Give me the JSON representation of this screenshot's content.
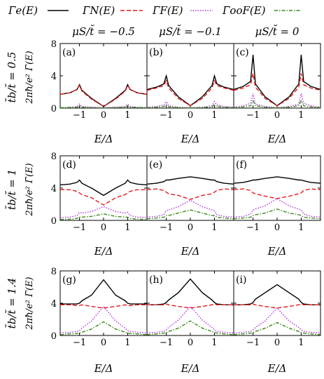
{
  "legend": {
    "entries": [
      {
        "label": "Γ̄e(E)",
        "color": "#000000",
        "dash": ""
      },
      {
        "label": "Γ̄N(E)",
        "color": "#e41a1c",
        "dash": "6,3"
      },
      {
        "label": "Γ̄F(E)",
        "color": "#b030e0",
        "dash": "1.5,2"
      },
      {
        "label": "Γ̄ooF(E)",
        "color": "#3a8a1a",
        "dash": "5,2,1.5,2"
      }
    ]
  },
  "column_headers": [
    "μS/t̆ = −0.5",
    "μS/t̆ = −0.1",
    "μS/t̆ = 0"
  ],
  "row_labels": [
    "t̆b/t̆ = 0.5",
    "t̆b/t̆ = 1",
    "t̆b/t̆ = 1.4"
  ],
  "y_axis_label": "2πħ/e² Γ̄(E)",
  "x_axis_label": "E/Δ",
  "chart_data": {
    "type": "line",
    "xlabel": "E/Δ",
    "ylabel": "2πħ/e² Γ̄(E)",
    "xlim": [
      -1.8,
      1.8
    ],
    "ylim": [
      0,
      8
    ],
    "xticks": [
      "−1",
      "0",
      "1"
    ],
    "yticks": [
      "0",
      "4",
      "8"
    ],
    "x": [
      -1.8,
      -1.4,
      -1.1,
      -1.0,
      -0.9,
      -0.5,
      0,
      0.5,
      0.9,
      1.0,
      1.1,
      1.4,
      1.8
    ],
    "panels": [
      {
        "label": "(a)",
        "series": [
          {
            "name": "Γ̄e(E)",
            "values": [
              1.7,
              1.9,
              2.3,
              2.9,
              2.2,
              1.2,
              0.2,
              1.2,
              2.2,
              2.9,
              2.3,
              1.9,
              1.7
            ]
          },
          {
            "name": "Γ̄N(E)",
            "values": [
              1.7,
              1.9,
              2.3,
              2.8,
              2.1,
              1.1,
              0.2,
              1.1,
              2.1,
              2.8,
              2.3,
              1.9,
              1.7
            ]
          },
          {
            "name": "Γ̄F(E)",
            "values": [
              0.05,
              0.1,
              0.2,
              0.5,
              0.2,
              0.1,
              0.05,
              0.1,
              0.2,
              0.5,
              0.2,
              0.1,
              0.05
            ]
          },
          {
            "name": "Γ̄ooF(E)",
            "values": [
              0.05,
              0.08,
              0.1,
              0.25,
              0.1,
              0.06,
              0.03,
              0.06,
              0.1,
              0.25,
              0.1,
              0.08,
              0.05
            ]
          }
        ]
      },
      {
        "label": "(b)",
        "series": [
          {
            "name": "Γ̄e(E)",
            "values": [
              2.3,
              2.6,
              3.0,
              4.0,
              2.8,
              1.4,
              0.3,
              1.4,
              2.8,
              4.0,
              3.0,
              2.6,
              2.3
            ]
          },
          {
            "name": "Γ̄N(E)",
            "values": [
              2.2,
              2.5,
              2.8,
              3.4,
              2.5,
              1.2,
              0.3,
              1.2,
              2.5,
              3.4,
              2.8,
              2.5,
              2.2
            ]
          },
          {
            "name": "Γ̄F(E)",
            "values": [
              0.1,
              0.2,
              0.4,
              0.8,
              0.3,
              0.1,
              0.05,
              0.1,
              0.3,
              0.8,
              0.4,
              0.2,
              0.1
            ]
          },
          {
            "name": "Γ̄ooF(E)",
            "values": [
              0.05,
              0.1,
              0.2,
              0.4,
              0.15,
              0.06,
              0.03,
              0.06,
              0.15,
              0.4,
              0.2,
              0.1,
              0.05
            ]
          }
        ]
      },
      {
        "label": "(c)",
        "series": [
          {
            "name": "Γ̄e(E)",
            "values": [
              2.3,
              2.7,
              3.3,
              6.6,
              3.0,
              1.4,
              0.3,
              1.4,
              3.0,
              6.6,
              3.3,
              2.7,
              2.3
            ]
          },
          {
            "name": "Γ̄N(E)",
            "values": [
              2.2,
              2.5,
              2.9,
              4.3,
              2.6,
              1.2,
              0.3,
              1.2,
              2.6,
              4.3,
              2.9,
              2.5,
              2.2
            ]
          },
          {
            "name": "Γ̄F(E)",
            "values": [
              0.1,
              0.3,
              0.6,
              1.8,
              0.5,
              0.2,
              0.05,
              0.2,
              0.5,
              1.8,
              0.6,
              0.3,
              0.1
            ]
          },
          {
            "name": "Γ̄ooF(E)",
            "values": [
              0.05,
              0.15,
              0.3,
              0.9,
              0.3,
              0.1,
              0.03,
              0.1,
              0.3,
              0.9,
              0.3,
              0.15,
              0.05
            ]
          }
        ]
      },
      {
        "label": "(d)",
        "series": [
          {
            "name": "Γ̄e(E)",
            "values": [
              4.4,
              4.5,
              4.7,
              5.0,
              4.6,
              4.0,
              3.1,
              4.0,
              4.6,
              5.0,
              4.7,
              4.5,
              4.4
            ]
          },
          {
            "name": "Γ̄N(E)",
            "values": [
              3.8,
              3.8,
              3.6,
              3.4,
              3.2,
              2.8,
              1.9,
              2.8,
              3.2,
              3.4,
              3.6,
              3.8,
              3.8
            ]
          },
          {
            "name": "Γ̄F(E)",
            "values": [
              0.3,
              0.4,
              0.6,
              1.0,
              0.9,
              1.1,
              1.7,
              1.1,
              0.9,
              1.0,
              0.6,
              0.4,
              0.3
            ]
          },
          {
            "name": "Γ̄ooF(E)",
            "values": [
              0.1,
              0.15,
              0.25,
              0.4,
              0.4,
              0.5,
              0.8,
              0.5,
              0.4,
              0.4,
              0.25,
              0.15,
              0.1
            ]
          }
        ]
      },
      {
        "label": "(e)",
        "series": [
          {
            "name": "Γ̄e(E)",
            "values": [
              4.5,
              4.6,
              4.8,
              5.0,
              5.0,
              5.2,
              5.4,
              5.2,
              5.0,
              5.0,
              4.8,
              4.6,
              4.5
            ]
          },
          {
            "name": "Γ̄N(E)",
            "values": [
              3.8,
              3.9,
              3.7,
              3.5,
              3.3,
              3.1,
              2.6,
              3.1,
              3.3,
              3.5,
              3.7,
              3.9,
              3.8
            ]
          },
          {
            "name": "Γ̄F(E)",
            "values": [
              0.4,
              0.5,
              0.7,
              1.2,
              1.3,
              1.7,
              2.5,
              1.7,
              1.3,
              1.2,
              0.7,
              0.5,
              0.4
            ]
          },
          {
            "name": "Γ̄ooF(E)",
            "values": [
              0.2,
              0.3,
              0.4,
              0.6,
              0.6,
              0.9,
              1.3,
              0.9,
              0.6,
              0.6,
              0.4,
              0.3,
              0.2
            ]
          }
        ]
      },
      {
        "label": "(f)",
        "series": [
          {
            "name": "Γ̄e(E)",
            "values": [
              4.6,
              4.7,
              4.9,
              5.0,
              5.0,
              5.2,
              5.4,
              5.2,
              5.0,
              5.0,
              4.9,
              4.7,
              4.6
            ]
          },
          {
            "name": "Γ̄N(E)",
            "values": [
              3.8,
              3.9,
              3.7,
              3.4,
              3.3,
              3.0,
              2.7,
              3.0,
              3.3,
              3.4,
              3.7,
              3.9,
              3.8
            ]
          },
          {
            "name": "Γ̄F(E)",
            "values": [
              0.4,
              0.5,
              0.8,
              1.3,
              1.4,
              1.8,
              2.7,
              1.8,
              1.4,
              1.3,
              0.8,
              0.5,
              0.4
            ]
          },
          {
            "name": "Γ̄ooF(E)",
            "values": [
              0.2,
              0.3,
              0.4,
              0.6,
              0.7,
              0.9,
              1.4,
              0.9,
              0.7,
              0.6,
              0.4,
              0.3,
              0.2
            ]
          }
        ]
      },
      {
        "label": "(g)",
        "series": [
          {
            "name": "Γ̄e(E)",
            "values": [
              3.9,
              3.9,
              3.9,
              4.0,
              4.3,
              5.0,
              6.9,
              5.0,
              4.3,
              4.0,
              3.9,
              3.9,
              3.9
            ]
          },
          {
            "name": "Γ̄N(E)",
            "values": [
              3.8,
              3.8,
              3.7,
              3.7,
              3.8,
              3.6,
              3.4,
              3.6,
              3.8,
              3.7,
              3.7,
              3.8,
              3.8
            ]
          },
          {
            "name": "Γ̄F(E)",
            "values": [
              0.3,
              0.4,
              0.5,
              0.6,
              0.9,
              1.8,
              3.6,
              1.8,
              0.9,
              0.6,
              0.5,
              0.4,
              0.3
            ]
          },
          {
            "name": "Γ̄ooF(E)",
            "values": [
              0.1,
              0.2,
              0.25,
              0.3,
              0.4,
              0.8,
              1.7,
              0.8,
              0.4,
              0.3,
              0.25,
              0.2,
              0.1
            ]
          }
        ]
      },
      {
        "label": "(h)",
        "series": [
          {
            "name": "Γ̄e(E)",
            "values": [
              3.8,
              3.8,
              3.9,
              4.1,
              4.4,
              5.3,
              7.0,
              5.3,
              4.4,
              4.1,
              3.9,
              3.8,
              3.8
            ]
          },
          {
            "name": "Γ̄N(E)",
            "values": [
              3.8,
              3.8,
              3.8,
              3.9,
              3.8,
              3.6,
              3.4,
              3.6,
              3.8,
              3.9,
              3.8,
              3.8,
              3.8
            ]
          },
          {
            "name": "Γ̄F(E)",
            "values": [
              0.3,
              0.4,
              0.5,
              0.7,
              1.0,
              1.9,
              3.6,
              1.9,
              1.0,
              0.7,
              0.5,
              0.4,
              0.3
            ]
          },
          {
            "name": "Γ̄ooF(E)",
            "values": [
              0.1,
              0.2,
              0.3,
              0.35,
              0.5,
              0.9,
              1.8,
              0.9,
              0.5,
              0.35,
              0.3,
              0.2,
              0.1
            ]
          }
        ]
      },
      {
        "label": "(i)",
        "series": [
          {
            "name": "Γ̄e(E)",
            "values": [
              3.8,
              3.8,
              3.9,
              4.1,
              4.5,
              5.3,
              6.3,
              5.3,
              4.5,
              4.1,
              3.9,
              3.8,
              3.8
            ]
          },
          {
            "name": "Γ̄N(E)",
            "values": [
              3.8,
              3.8,
              3.8,
              3.9,
              3.8,
              3.6,
              3.4,
              3.6,
              3.8,
              3.9,
              3.8,
              3.8,
              3.8
            ]
          },
          {
            "name": "Γ̄F(E)",
            "values": [
              0.3,
              0.4,
              0.5,
              0.7,
              1.0,
              1.8,
              3.4,
              1.8,
              1.0,
              0.7,
              0.5,
              0.4,
              0.3
            ]
          },
          {
            "name": "Γ̄ooF(E)",
            "values": [
              0.1,
              0.2,
              0.3,
              0.35,
              0.5,
              0.9,
              1.6,
              0.9,
              0.5,
              0.35,
              0.3,
              0.2,
              0.1
            ]
          }
        ]
      }
    ]
  }
}
